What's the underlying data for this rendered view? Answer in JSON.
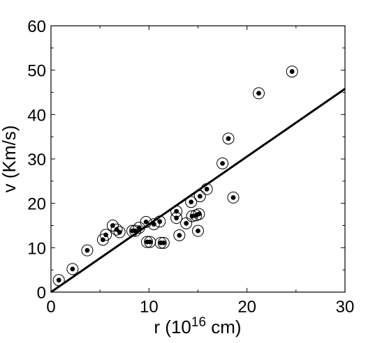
{
  "chart_data": {
    "type": "scatter",
    "xlabel": "r (10",
    "xlabel_exp": "16",
    "xlabel_tail": " cm)",
    "ylabel": "v (Km/s)",
    "xlim": [
      0,
      30
    ],
    "ylim": [
      0,
      60
    ],
    "xticks": [
      0,
      10,
      20,
      30
    ],
    "yticks": [
      0,
      10,
      20,
      30,
      40,
      50,
      60
    ],
    "xtick_labels": [
      "0",
      "10",
      "20",
      "30"
    ],
    "ytick_labels": [
      "0",
      "10",
      "20",
      "30",
      "40",
      "50",
      "60"
    ],
    "grid": false,
    "marker": "dot-in-circle",
    "points": [
      {
        "x": 0.8,
        "y": 2.7
      },
      {
        "x": 2.2,
        "y": 5.2
      },
      {
        "x": 3.7,
        "y": 9.4
      },
      {
        "x": 5.3,
        "y": 11.8
      },
      {
        "x": 5.6,
        "y": 12.9
      },
      {
        "x": 6.3,
        "y": 15.0
      },
      {
        "x": 6.7,
        "y": 14.1
      },
      {
        "x": 7.0,
        "y": 13.5
      },
      {
        "x": 8.3,
        "y": 13.8
      },
      {
        "x": 8.6,
        "y": 13.8
      },
      {
        "x": 9.0,
        "y": 14.5
      },
      {
        "x": 9.7,
        "y": 15.8
      },
      {
        "x": 9.8,
        "y": 11.3
      },
      {
        "x": 10.1,
        "y": 11.3
      },
      {
        "x": 10.5,
        "y": 15.3
      },
      {
        "x": 11.1,
        "y": 15.9
      },
      {
        "x": 11.2,
        "y": 11.1
      },
      {
        "x": 11.5,
        "y": 11.1
      },
      {
        "x": 12.8,
        "y": 18.2
      },
      {
        "x": 12.8,
        "y": 16.7
      },
      {
        "x": 13.1,
        "y": 12.8
      },
      {
        "x": 13.8,
        "y": 15.5
      },
      {
        "x": 14.3,
        "y": 20.3
      },
      {
        "x": 14.4,
        "y": 17.1
      },
      {
        "x": 14.8,
        "y": 17.3
      },
      {
        "x": 15.0,
        "y": 13.8
      },
      {
        "x": 15.1,
        "y": 17.6
      },
      {
        "x": 15.2,
        "y": 21.6
      },
      {
        "x": 15.9,
        "y": 23.2
      },
      {
        "x": 17.5,
        "y": 29.0
      },
      {
        "x": 18.1,
        "y": 34.6
      },
      {
        "x": 18.6,
        "y": 21.3
      },
      {
        "x": 21.2,
        "y": 44.8
      },
      {
        "x": 24.6,
        "y": 49.7
      }
    ],
    "fit_line": {
      "x": [
        0,
        30
      ],
      "y": [
        0,
        45.8
      ]
    }
  }
}
